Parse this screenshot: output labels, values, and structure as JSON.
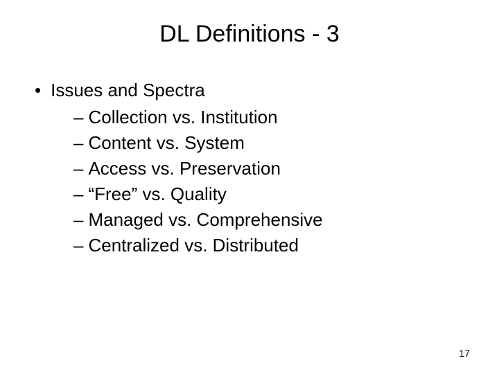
{
  "title": "DL Definitions - 3",
  "level1_text": "Issues and Spectra",
  "bullets": {
    "b0": "Collection vs. Institution",
    "b1": "Content vs. System",
    "b2": "Access vs. Preservation",
    "b3": "“Free” vs. Quality",
    "b4": "Managed vs. Comprehensive",
    "b5": "Centralized vs. Distributed"
  },
  "page_number": "17",
  "styling": {
    "background_color": "#ffffff",
    "text_color": "#000000",
    "title_fontsize": 34,
    "body_fontsize": 26,
    "pagenum_fontsize": 14,
    "font_family": "Arial"
  }
}
